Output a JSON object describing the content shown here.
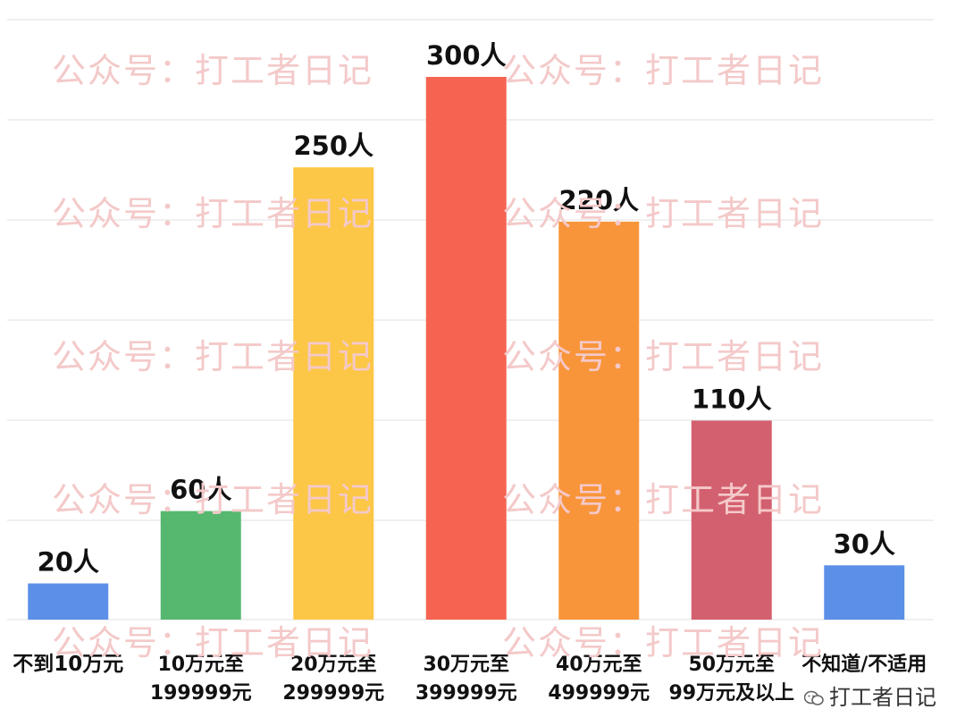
{
  "watermark": "公众号：打工者日记",
  "footer_mark": "打工者日记",
  "chart_data": {
    "type": "bar",
    "categories": [
      [
        "不到10万元"
      ],
      [
        "10万元至",
        "199999元"
      ],
      [
        "20万元至",
        "299999元"
      ],
      [
        "30万元至",
        "399999元"
      ],
      [
        "40万元至",
        "499999元"
      ],
      [
        "50万元至",
        "99万元及以上"
      ],
      [
        "不知道/不适用"
      ]
    ],
    "values": [
      20,
      60,
      250,
      300,
      220,
      110,
      30
    ],
    "value_labels": [
      "20人",
      "60人",
      "250人",
      "300人",
      "220人",
      "110人",
      "30人"
    ],
    "colors": [
      "#5b8fe8",
      "#56b86e",
      "#fcc746",
      "#f66451",
      "#f8953b",
      "#d3606f",
      "#5b8fe8"
    ],
    "ylim": [
      0,
      300
    ],
    "grid": true
  }
}
